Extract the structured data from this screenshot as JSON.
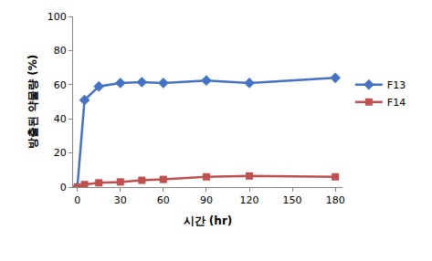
{
  "chart_data": {
    "type": "line",
    "x_label": "시간 (hr)",
    "y_label": "방출된 약물량 (%)",
    "x": [
      0,
      5,
      15,
      30,
      45,
      60,
      90,
      120,
      180
    ],
    "series": [
      {
        "name": "F13",
        "color": "#4472c4",
        "marker": "diamond",
        "values": [
          0,
          51,
          59,
          61,
          61.5,
          61,
          62.5,
          61,
          64
        ]
      },
      {
        "name": "F14",
        "color": "#c0504d",
        "marker": "square",
        "values": [
          0,
          1.5,
          2.5,
          3,
          4,
          4.5,
          6,
          6.5,
          6
        ]
      }
    ],
    "xlim": [
      -3,
      185
    ],
    "xticks": [
      0,
      30,
      60,
      90,
      120,
      150,
      180
    ],
    "ylim": [
      0,
      100
    ],
    "yticks": [
      0,
      20,
      40,
      60,
      80,
      100
    ],
    "grid": false,
    "legend": "right"
  }
}
